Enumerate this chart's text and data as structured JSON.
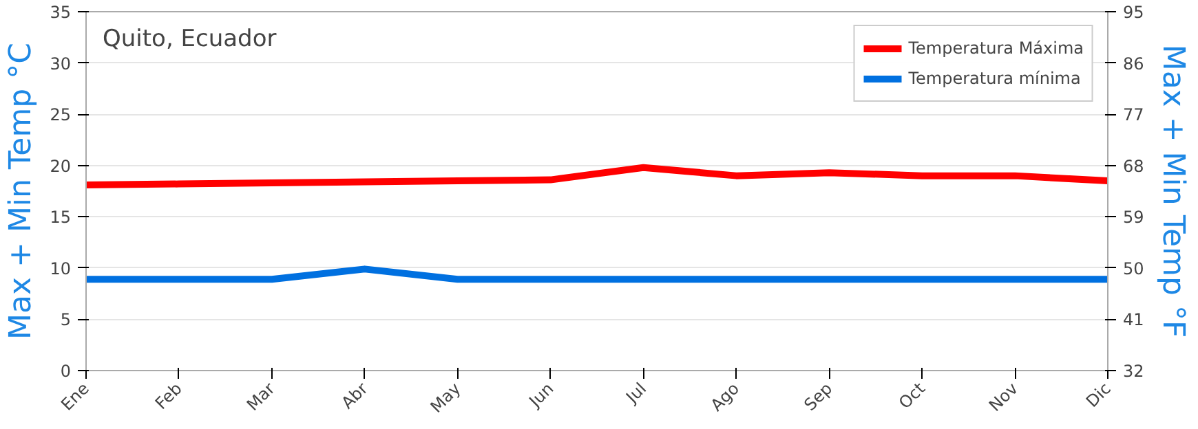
{
  "chart_data": {
    "type": "line",
    "title": "Quito, Ecuador",
    "ylabel": "Max + Min Temp °C",
    "y2label": "Max + Min Temp °F",
    "categories": [
      "Ene",
      "Feb",
      "Mar",
      "Abr",
      "May",
      "Jun",
      "Jul",
      "Ago",
      "Sep",
      "Oct",
      "Nov",
      "Dic"
    ],
    "series": [
      {
        "name": "Temperatura Máxima",
        "color": "#ff0000",
        "values": [
          18.1,
          18.2,
          18.3,
          18.4,
          18.5,
          18.6,
          19.8,
          19.0,
          19.3,
          19.0,
          19.0,
          18.5
        ]
      },
      {
        "name": "Temperatura mínima",
        "color": "#0070e0",
        "values": [
          8.9,
          8.9,
          8.9,
          9.9,
          8.9,
          8.9,
          8.9,
          8.9,
          8.9,
          8.9,
          8.9,
          8.9
        ]
      }
    ],
    "ylim": [
      0,
      35
    ],
    "yticks": [
      0,
      5,
      10,
      15,
      20,
      25,
      30,
      35
    ],
    "y2lim": [
      32,
      95
    ],
    "y2ticks": [
      32,
      41,
      50,
      59,
      68,
      77,
      86,
      95
    ],
    "grid": "y",
    "legend": "top right",
    "marker": "none",
    "line_style": "solid"
  }
}
